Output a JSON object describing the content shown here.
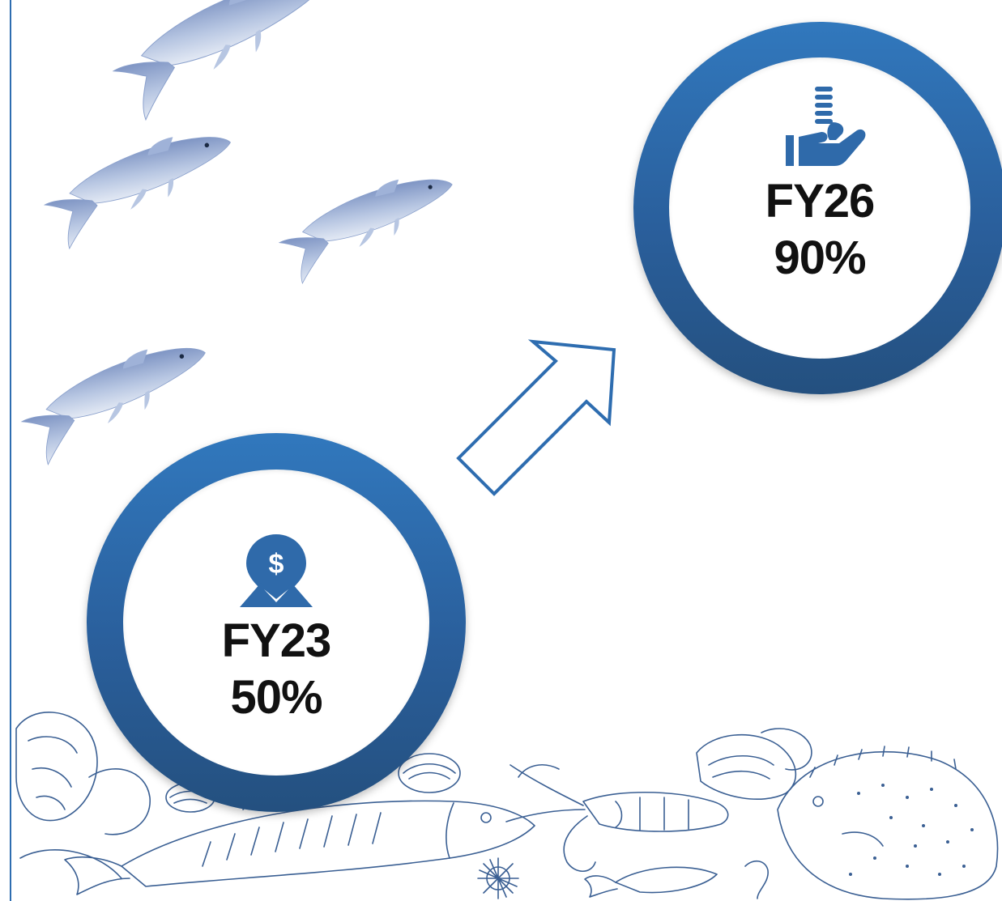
{
  "milestones": [
    {
      "year": "FY23",
      "value": "50%",
      "icon": "dollar-location-pin-icon"
    },
    {
      "year": "FY26",
      "value": "90%",
      "icon": "hand-holding-coins-icon"
    }
  ],
  "colors": {
    "ring_top": "#3178bd",
    "ring_bottom": "#24507f",
    "arrow_outline": "#2e6db0",
    "fish": "#8fa6cf",
    "sketch_line": "#3a5f93",
    "text": "#111111"
  },
  "decorations": {
    "top_left": "watercolor-fish-school",
    "bottom": "sea-creatures-line-sketch"
  },
  "arrow": {
    "direction": "up-right",
    "style": "outline"
  }
}
